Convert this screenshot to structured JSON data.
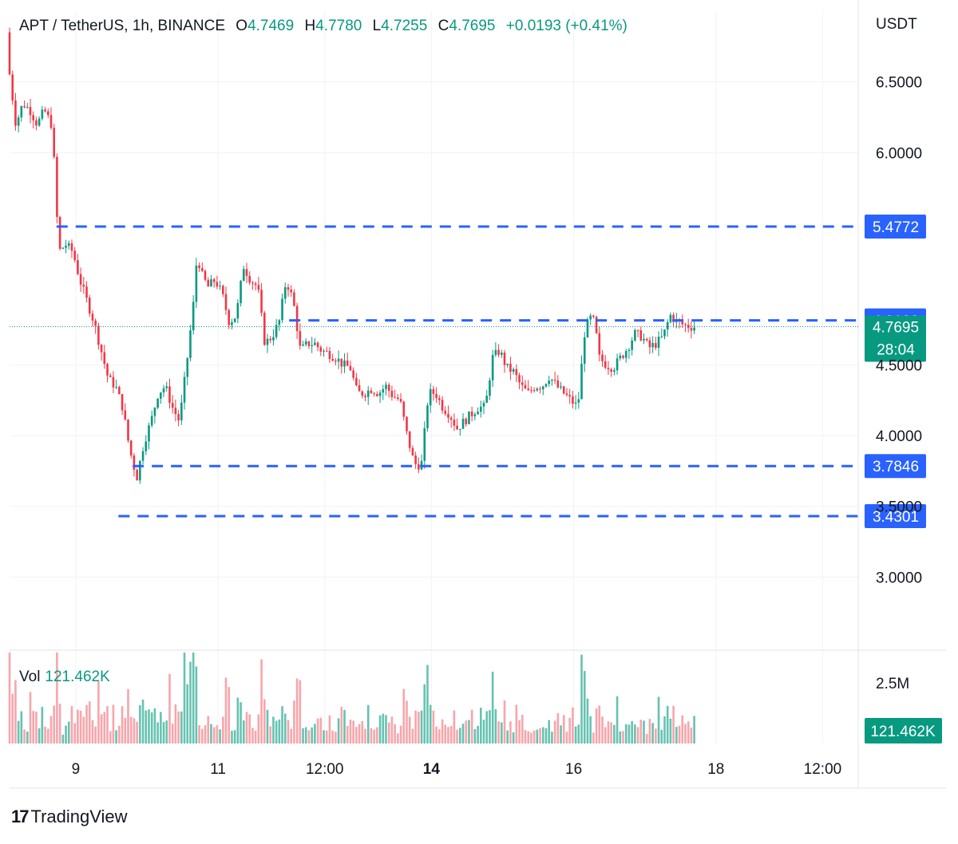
{
  "legend": {
    "title": "APT / TetherUS, 1h, BINANCE",
    "o_label": "O",
    "o_value": "4.7469",
    "h_label": "H",
    "h_value": "4.7780",
    "l_label": "L",
    "l_value": "4.7255",
    "c_label": "C",
    "c_value": "4.7695",
    "change": "+0.0193 (+0.41%)"
  },
  "volume_legend": {
    "label": "Vol",
    "value": "121.462K"
  },
  "branding": {
    "logo_mark": "17",
    "name": "TradingView"
  },
  "colors": {
    "up": "#089981",
    "down": "#F23645",
    "up_volume": "#66C2B1",
    "down_volume": "#F7A5AB",
    "level_line": "#2962FF",
    "last_price_line": "#089981",
    "grid": "#F0F3FA",
    "text": "#131722"
  },
  "chart_data": {
    "type": "candlestick",
    "symbol": "APT / TetherUS",
    "interval": "1h",
    "exchange": "BINANCE",
    "currency_label": "USDT",
    "y_ticks": [
      "6.5000",
      "6.0000",
      "4.5000",
      "4.0000",
      "3.5000",
      "3.0000"
    ],
    "x_ticks": [
      {
        "label": "9",
        "x": 9.0,
        "bold": false
      },
      {
        "label": "11",
        "x": 11.0,
        "bold": false
      },
      {
        "label": "12:00",
        "x": 12.5,
        "bold": false
      },
      {
        "label": "14",
        "x": 14.0,
        "bold": true
      },
      {
        "label": "16",
        "x": 16.0,
        "bold": false
      },
      {
        "label": "18",
        "x": 18.0,
        "bold": false
      },
      {
        "label": "12:00",
        "x": 19.5,
        "bold": false
      }
    ],
    "x_range": [
      8.07,
      20.0
    ],
    "y_range": [
      2.5,
      7.0
    ],
    "horizontal_levels": [
      {
        "value": 5.4772,
        "label": "5.4772",
        "from_x": 8.73
      },
      {
        "value": 4.8139,
        "label": "4.8139",
        "from_x": 12.0
      },
      {
        "value": 3.7846,
        "label": "3.7846",
        "from_x": 9.8
      },
      {
        "value": 3.4301,
        "label": "3.4301",
        "from_x": 9.6
      }
    ],
    "last_price": {
      "value": 4.7695,
      "label": "4.7695",
      "countdown": "28:04"
    },
    "volume_tick": "2.5M",
    "volume_last": "121.462K",
    "volume_max": 3000000,
    "price_path": [
      [
        8.07,
        6.85
      ],
      [
        8.1,
        6.6
      ],
      [
        8.2,
        6.2
      ],
      [
        8.3,
        6.35
      ],
      [
        8.4,
        6.3
      ],
      [
        8.5,
        6.2
      ],
      [
        8.6,
        6.3
      ],
      [
        8.7,
        6.2
      ],
      [
        8.75,
        5.85
      ],
      [
        8.8,
        5.3
      ],
      [
        8.9,
        5.35
      ],
      [
        9.0,
        5.3
      ],
      [
        9.1,
        5.1
      ],
      [
        9.2,
        4.95
      ],
      [
        9.3,
        4.8
      ],
      [
        9.4,
        4.6
      ],
      [
        9.5,
        4.4
      ],
      [
        9.6,
        4.35
      ],
      [
        9.7,
        4.2
      ],
      [
        9.8,
        3.9
      ],
      [
        9.9,
        3.7
      ],
      [
        10.0,
        3.95
      ],
      [
        10.1,
        4.1
      ],
      [
        10.2,
        4.3
      ],
      [
        10.3,
        4.35
      ],
      [
        10.4,
        4.2
      ],
      [
        10.5,
        4.1
      ],
      [
        10.6,
        4.5
      ],
      [
        10.7,
        4.95
      ],
      [
        10.75,
        5.3
      ],
      [
        10.8,
        5.15
      ],
      [
        10.9,
        5.05
      ],
      [
        11.0,
        5.1
      ],
      [
        11.1,
        5.0
      ],
      [
        11.2,
        4.8
      ],
      [
        11.3,
        4.85
      ],
      [
        11.4,
        5.2
      ],
      [
        11.5,
        5.1
      ],
      [
        11.6,
        5.05
      ],
      [
        11.7,
        4.65
      ],
      [
        11.8,
        4.7
      ],
      [
        11.9,
        4.8
      ],
      [
        12.0,
        5.1
      ],
      [
        12.1,
        4.95
      ],
      [
        12.2,
        4.6
      ],
      [
        12.3,
        4.65
      ],
      [
        12.4,
        4.65
      ],
      [
        12.5,
        4.6
      ],
      [
        12.6,
        4.58
      ],
      [
        12.7,
        4.55
      ],
      [
        12.8,
        4.5
      ],
      [
        12.9,
        4.48
      ],
      [
        13.0,
        4.3
      ],
      [
        13.1,
        4.3
      ],
      [
        13.2,
        4.33
      ],
      [
        13.3,
        4.3
      ],
      [
        13.4,
        4.35
      ],
      [
        13.5,
        4.28
      ],
      [
        13.6,
        4.25
      ],
      [
        13.7,
        4.0
      ],
      [
        13.8,
        3.8
      ],
      [
        13.9,
        3.79
      ],
      [
        14.0,
        4.3
      ],
      [
        14.1,
        4.3
      ],
      [
        14.2,
        4.2
      ],
      [
        14.3,
        4.15
      ],
      [
        14.4,
        4.05
      ],
      [
        14.5,
        4.1
      ],
      [
        14.6,
        4.15
      ],
      [
        14.7,
        4.2
      ],
      [
        14.8,
        4.2
      ],
      [
        14.9,
        4.55
      ],
      [
        15.0,
        4.6
      ],
      [
        15.1,
        4.48
      ],
      [
        15.2,
        4.45
      ],
      [
        15.3,
        4.35
      ],
      [
        15.4,
        4.3
      ],
      [
        15.5,
        4.35
      ],
      [
        15.6,
        4.35
      ],
      [
        15.7,
        4.42
      ],
      [
        15.8,
        4.35
      ],
      [
        15.9,
        4.3
      ],
      [
        16.0,
        4.25
      ],
      [
        16.1,
        4.2
      ],
      [
        16.2,
        4.75
      ],
      [
        16.3,
        4.85
      ],
      [
        16.35,
        4.75
      ],
      [
        16.4,
        4.55
      ],
      [
        16.5,
        4.5
      ],
      [
        16.6,
        4.48
      ],
      [
        16.7,
        4.55
      ],
      [
        16.8,
        4.62
      ],
      [
        16.9,
        4.72
      ],
      [
        17.0,
        4.7
      ],
      [
        17.1,
        4.62
      ],
      [
        17.2,
        4.65
      ],
      [
        17.3,
        4.7
      ],
      [
        17.35,
        4.78
      ],
      [
        17.4,
        4.85
      ],
      [
        17.5,
        4.8
      ],
      [
        17.6,
        4.78
      ],
      [
        17.7,
        4.7695
      ]
    ]
  }
}
